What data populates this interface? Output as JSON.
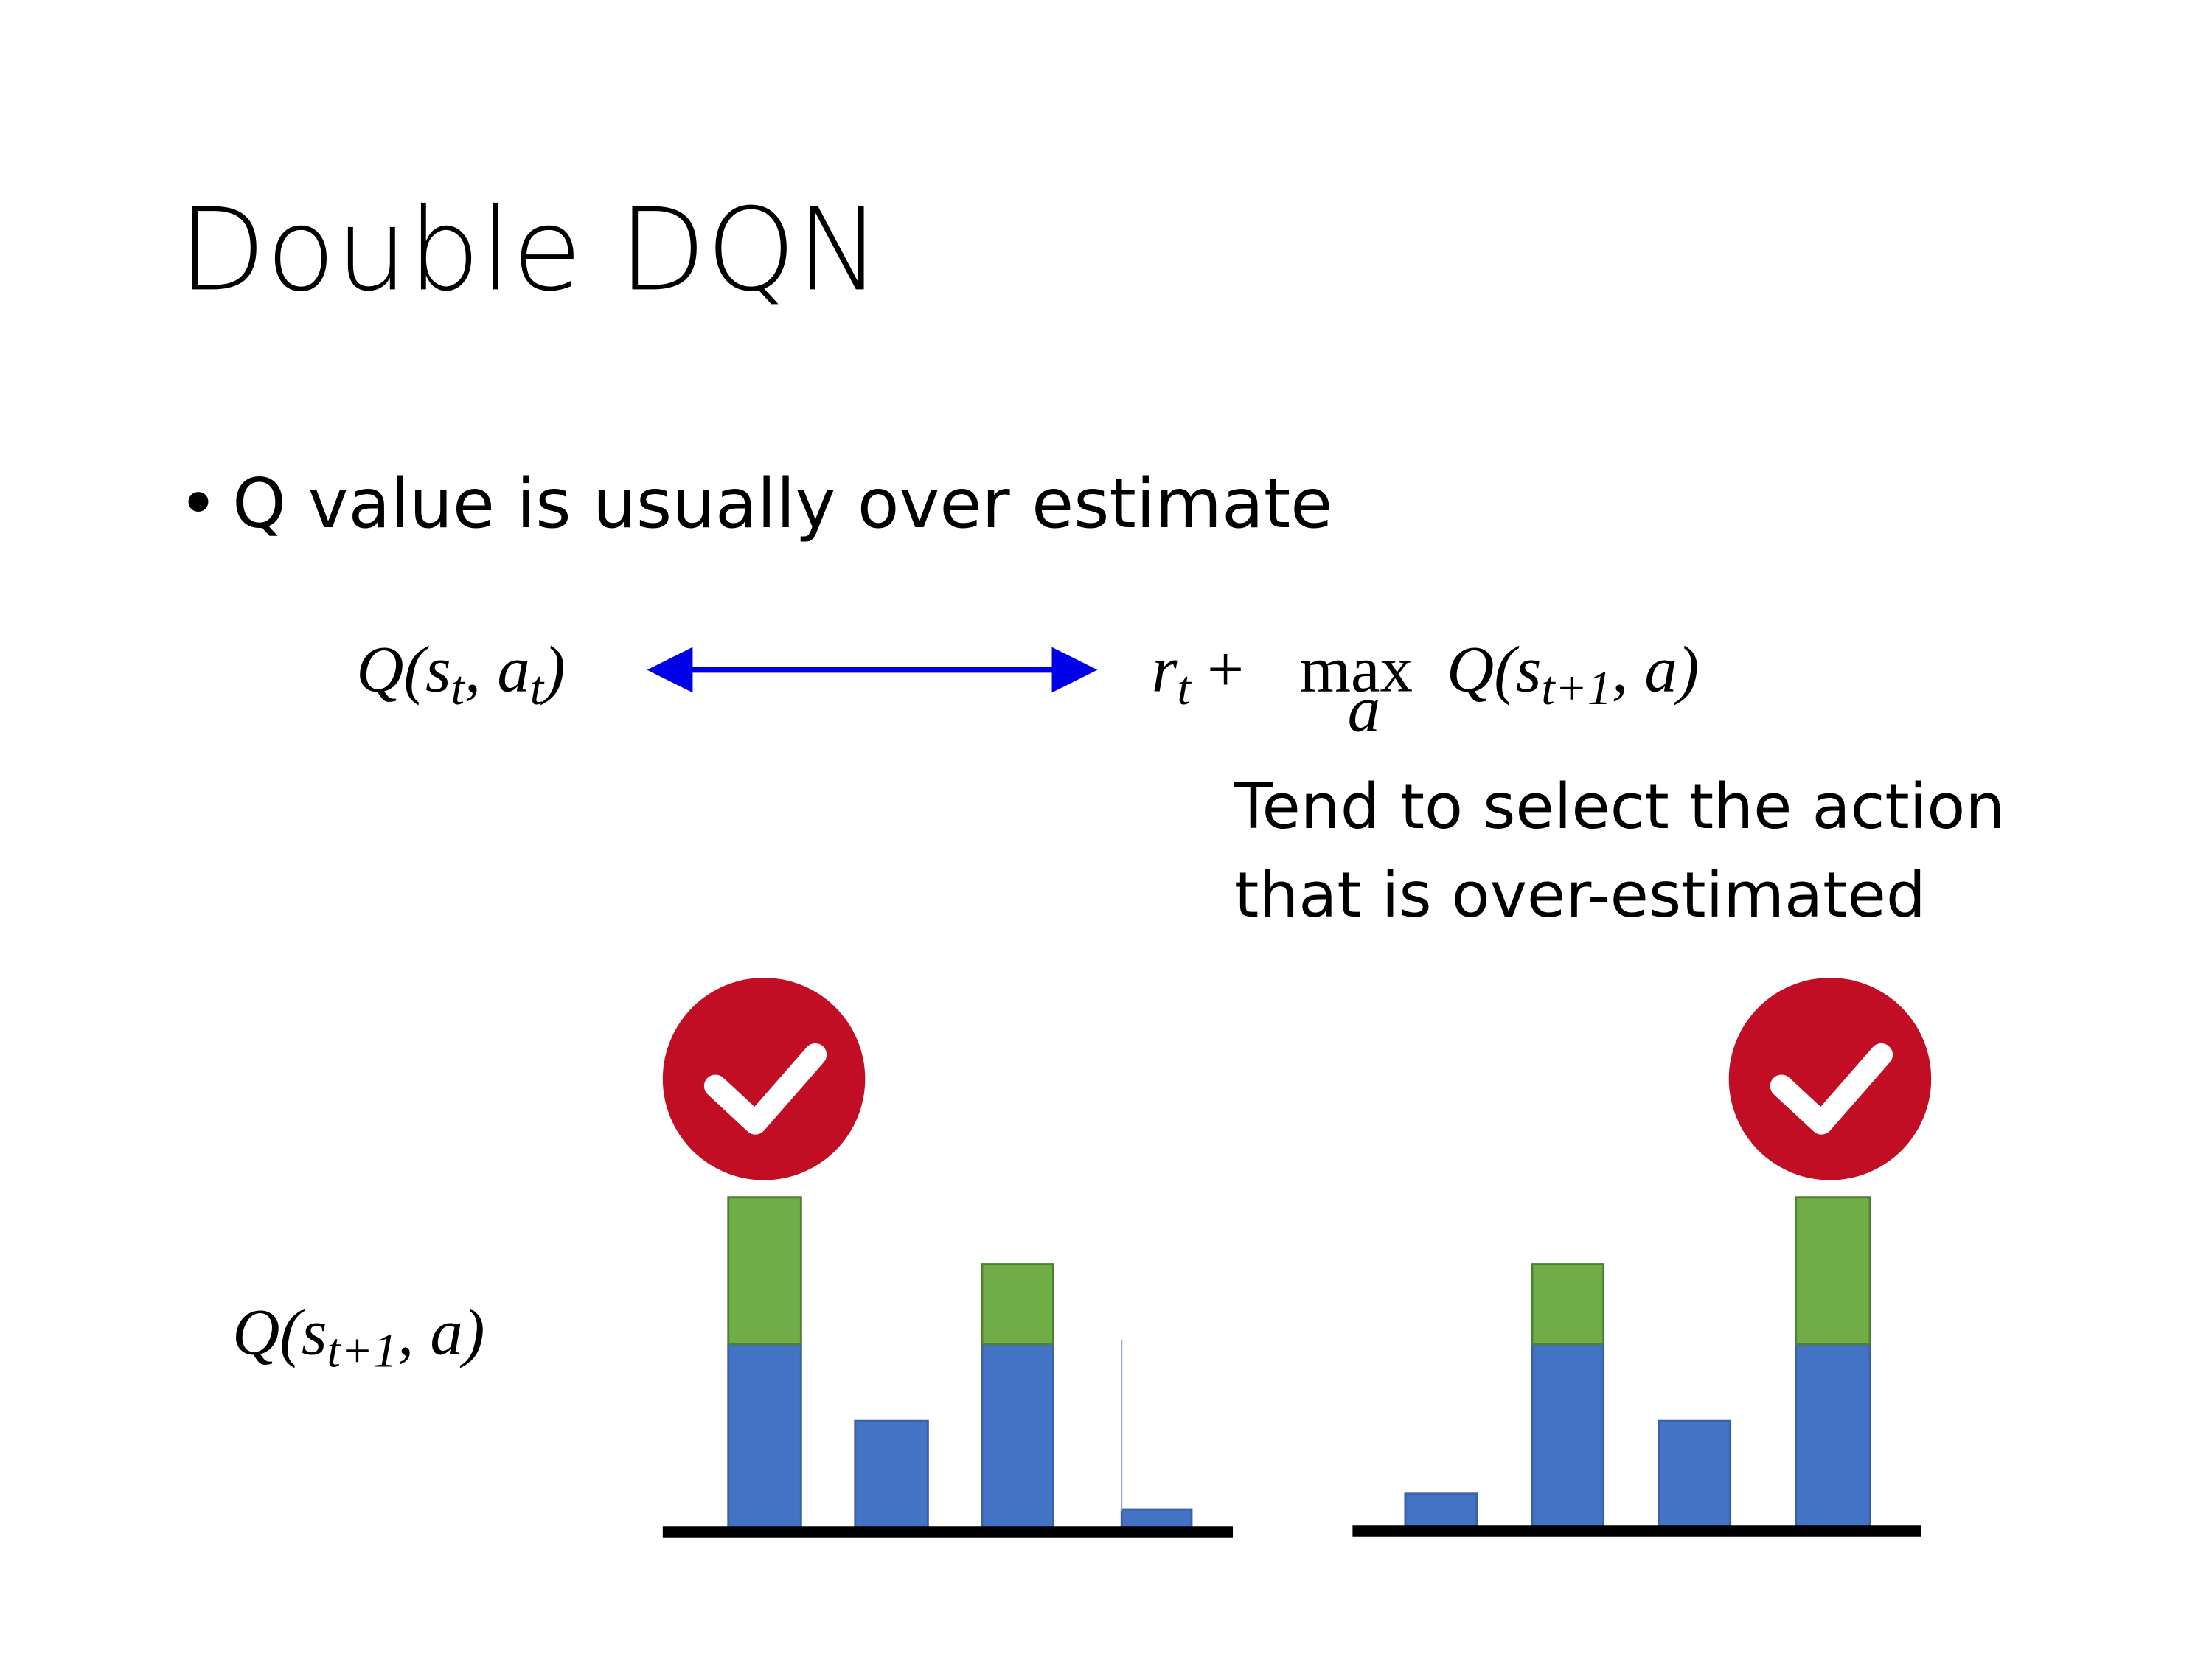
{
  "title": "Double DQN",
  "bullet": "Q value is usually over estimate",
  "equation_left": [
    "Q(s",
    "t",
    ", a",
    "t",
    ")"
  ],
  "equation_right": [
    "r",
    "t",
    " + ",
    "max",
    "a",
    "Q(s",
    "t+1",
    ", a)"
  ],
  "annotation": [
    "Tend to select the action",
    "that is over-estimated"
  ],
  "bar_label": [
    "Q(s",
    "t+1",
    ", a)"
  ]
}
